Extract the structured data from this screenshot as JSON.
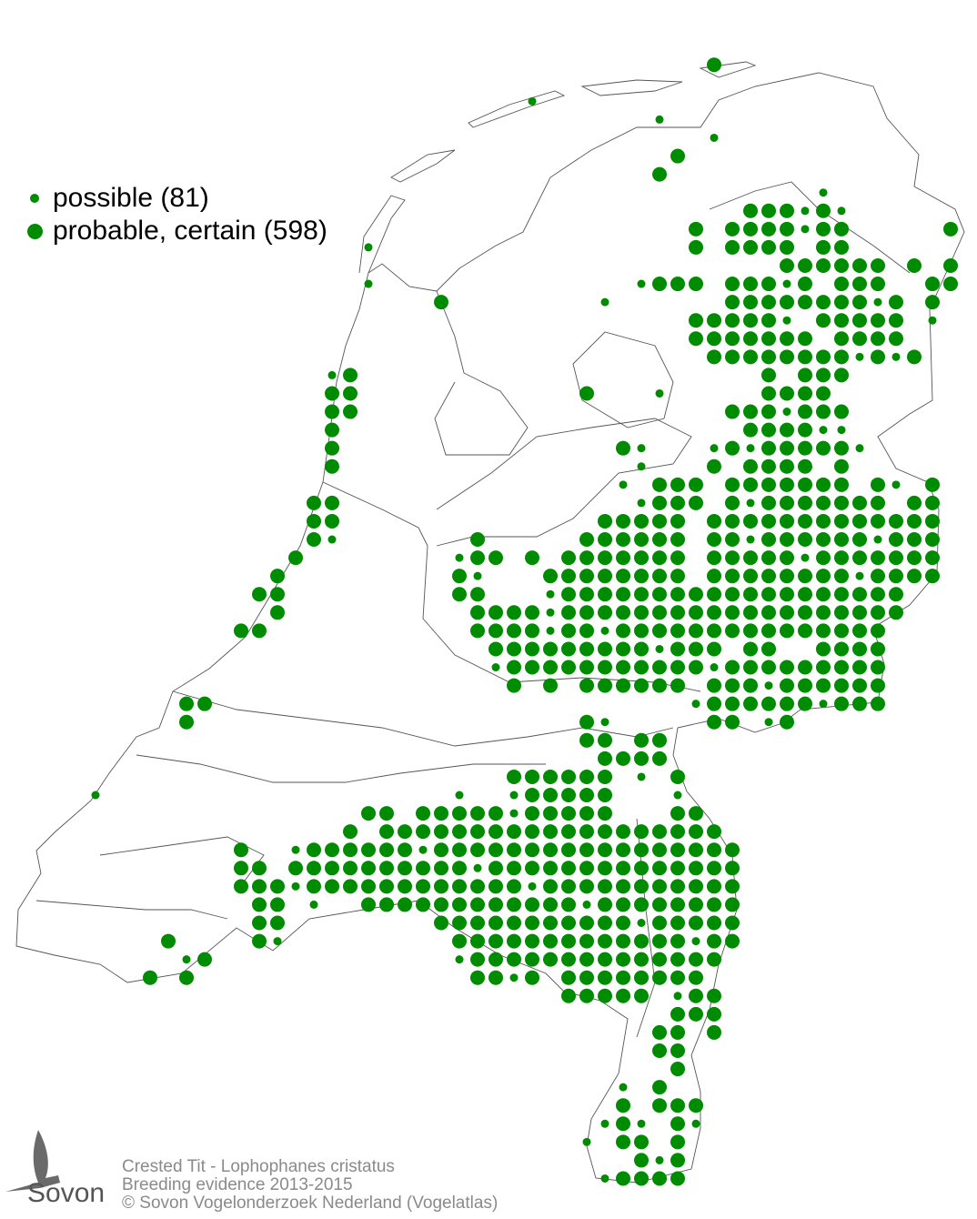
{
  "legend": {
    "possible_label": "possible (81)",
    "probable_label": "probable, certain (598)"
  },
  "credits": {
    "species": "Crested Tit - Lophophanes cristatus",
    "subtitle": "Breeding evidence 2013-2015",
    "copyright": "© Sovon Vogelonderzoek Nederland (Vogelatlas)"
  },
  "logo": {
    "text": "Sovon"
  },
  "colors": {
    "dot": "#008c00",
    "border": "#555555"
  }
}
